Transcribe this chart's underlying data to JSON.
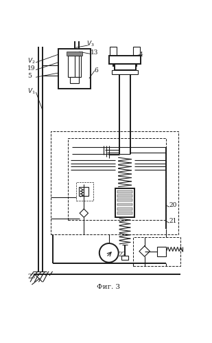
{
  "fig_label": "Фиг. 3",
  "background": "#ffffff",
  "lc": "#1a1a1a",
  "lw": 0.8,
  "lw2": 1.4
}
